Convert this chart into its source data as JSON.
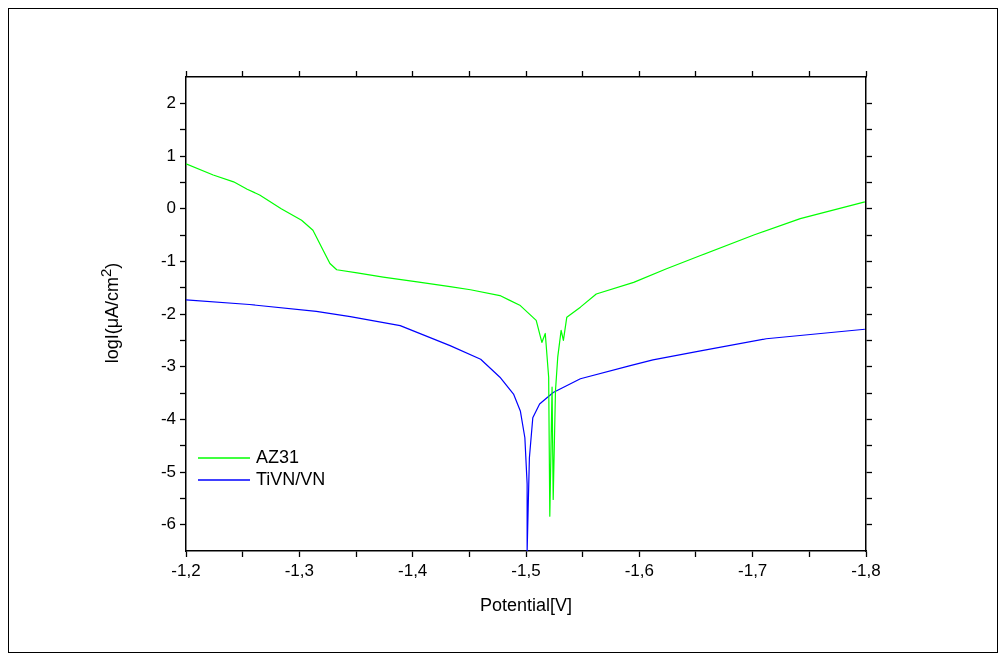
{
  "chart_data": {
    "type": "line",
    "xlabel": "Potential[V]",
    "ylabel": "logI(μA/cm$^{2}$)",
    "xlim": [
      -1.2,
      -1.8
    ],
    "xticks": [
      {
        "value": -1.2,
        "label": "-1,2"
      },
      {
        "value": -1.25,
        "label": null
      },
      {
        "value": -1.3,
        "label": "-1,3"
      },
      {
        "value": -1.35,
        "label": null
      },
      {
        "value": -1.4,
        "label": "-1,4"
      },
      {
        "value": -1.45,
        "label": null
      },
      {
        "value": -1.5,
        "label": "-1,5"
      },
      {
        "value": -1.55,
        "label": null
      },
      {
        "value": -1.6,
        "label": "-1,6"
      },
      {
        "value": -1.65,
        "label": null
      },
      {
        "value": -1.7,
        "label": "-1,7"
      },
      {
        "value": -1.75,
        "label": null
      },
      {
        "value": -1.8,
        "label": "-1,8"
      }
    ],
    "ylim": [
      -6.5,
      2.5
    ],
    "yticks": [
      -6,
      {
        "value": -5.5,
        "label": null
      },
      -5,
      {
        "value": -4.5,
        "label": null
      },
      -4,
      {
        "value": -3.5,
        "label": null
      },
      -3,
      {
        "value": -2.5,
        "label": null
      },
      -2,
      {
        "value": -1.5,
        "label": null
      },
      -1,
      {
        "value": -0.5,
        "label": null
      },
      0,
      {
        "value": 0.5,
        "label": null
      },
      1,
      {
        "value": 1.5,
        "label": null
      },
      2
    ],
    "grid": false,
    "legend": "bottom left",
    "marker": "none",
    "line_style": "solid",
    "series": [
      {
        "name": "AZ31",
        "color": "#00ff00",
        "x": [
          -1.2,
          -1.224,
          -1.242,
          -1.254,
          -1.265,
          -1.284,
          -1.302,
          -1.312,
          -1.321,
          -1.327,
          -1.333,
          -1.351,
          -1.374,
          -1.404,
          -1.433,
          -1.451,
          -1.477,
          -1.495,
          -1.509,
          -1.514,
          -1.517,
          -1.52,
          -1.521,
          -1.523,
          -1.524,
          -1.526,
          -1.528,
          -1.531,
          -1.533,
          -1.536,
          -1.548,
          -1.562,
          -1.595,
          -1.624,
          -1.654,
          -1.701,
          -1.742,
          -1.799
        ],
        "values": [
          0.85,
          0.64,
          0.51,
          0.37,
          0.26,
          0.0,
          -0.22,
          -0.41,
          -0.79,
          -1.04,
          -1.16,
          -1.22,
          -1.3,
          -1.39,
          -1.48,
          -1.54,
          -1.65,
          -1.84,
          -2.12,
          -2.54,
          -2.37,
          -3.2,
          -5.84,
          -3.39,
          -5.52,
          -3.46,
          -2.82,
          -2.31,
          -2.5,
          -2.06,
          -1.87,
          -1.62,
          -1.4,
          -1.14,
          -0.89,
          -0.5,
          -0.19,
          0.13
        ]
      },
      {
        "name": "TiVN/VN",
        "color": "#0000ff",
        "x": [
          -1.2,
          -1.256,
          -1.315,
          -1.345,
          -1.389,
          -1.433,
          -1.46,
          -1.477,
          -1.489,
          -1.495,
          -1.499,
          -1.501,
          -1.501,
          -1.503,
          -1.506,
          -1.512,
          -1.524,
          -1.548,
          -1.592,
          -1.612,
          -1.654,
          -1.712,
          -1.799
        ],
        "values": [
          -1.73,
          -1.82,
          -1.95,
          -2.05,
          -2.22,
          -2.6,
          -2.86,
          -3.2,
          -3.52,
          -3.84,
          -4.35,
          -5.23,
          -6.5,
          -4.73,
          -3.97,
          -3.71,
          -3.49,
          -3.23,
          -2.98,
          -2.87,
          -2.7,
          -2.47,
          -2.29
        ]
      }
    ]
  }
}
